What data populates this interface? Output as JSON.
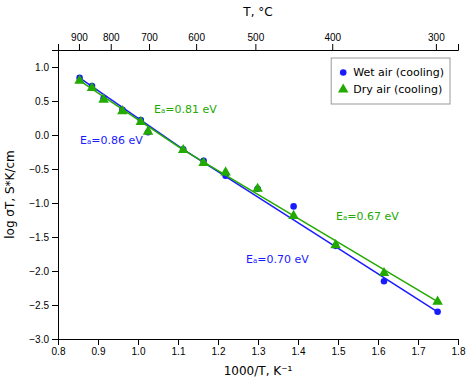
{
  "chart_data": {
    "type": "scatter",
    "xlabel": "1000/T, K⁻¹",
    "ylabel": "log σT, S*K/cm",
    "x2label": "T, °C",
    "xlim": [
      0.8,
      1.8
    ],
    "ylim": [
      -3.0,
      1.25
    ],
    "x2lim": [
      0.8,
      1.8
    ],
    "xticks": [
      0.8,
      0.9,
      {
        "value": 1.0,
        "label": "1.0"
      },
      1.1,
      1.2,
      1.3,
      1.4,
      1.5,
      1.6,
      1.7,
      1.8
    ],
    "yticks": [
      {
        "value": -3.0,
        "label": "−3.0"
      },
      {
        "value": -2.5,
        "label": "−2.5"
      },
      {
        "value": -2.0,
        "label": "−2.0"
      },
      {
        "value": -1.5,
        "label": "−1.5"
      },
      {
        "value": -1.0,
        "label": "−1.0"
      },
      {
        "value": -0.5,
        "label": "−0.5"
      },
      {
        "value": 0.0,
        "label": "0.0"
      },
      0.5,
      {
        "value": 1.0,
        "label": "1.0"
      }
    ],
    "x2ticks": [
      {
        "value": 0.852406,
        "label": "900"
      },
      {
        "value": 0.931836,
        "label": "800"
      },
      {
        "value": 1.027591,
        "label": "700"
      },
      {
        "value": 1.145279,
        "label": "600"
      },
      {
        "value": 1.29341,
        "label": "500"
      },
      {
        "value": 1.485553,
        "label": "400"
      },
      {
        "value": 1.744744,
        "label": "300"
      }
    ],
    "grid": false,
    "legend": "upper right",
    "series": [
      {
        "name": "Wet air (cooling)",
        "color": "#1a1aff",
        "marker": "circle",
        "x": [
          0.854,
          0.885,
          0.914,
          0.961,
          1.007,
          1.025,
          1.113,
          1.164,
          1.219,
          1.299,
          1.389,
          1.494,
          1.615,
          1.749
        ],
        "values": [
          0.84,
          0.72,
          0.54,
          0.37,
          0.22,
          0.04,
          -0.21,
          -0.38,
          -0.6,
          -0.79,
          -1.05,
          -1.63,
          -2.15,
          -2.6
        ],
        "segments": [
          {
            "x": [
              0.854,
              1.113
            ],
            "values": [
              0.84,
              -0.21
            ]
          },
          {
            "x": [
              1.113,
              1.749
            ],
            "values": [
              -0.21,
              -2.6
            ]
          }
        ]
      },
      {
        "name": "Dry air (cooling)",
        "color": "#22aa00",
        "marker": "triangle",
        "x": [
          0.854,
          0.885,
          0.914,
          0.961,
          1.007,
          1.025,
          1.113,
          1.164,
          1.219,
          1.299,
          1.389,
          1.494,
          1.615,
          1.749
        ],
        "values": [
          0.8,
          0.69,
          0.52,
          0.35,
          0.19,
          0.05,
          -0.22,
          -0.41,
          -0.55,
          -0.79,
          -1.19,
          -1.62,
          -2.03,
          -2.45
        ],
        "segments": [
          {
            "x": [
              0.854,
              1.113
            ],
            "values": [
              0.8,
              -0.22
            ]
          },
          {
            "x": [
              1.113,
              1.749
            ],
            "values": [
              -0.22,
              -2.45
            ]
          }
        ]
      }
    ],
    "annotations": [
      {
        "text": "Eₐ=0.81 eV",
        "x": 1.04,
        "y": 0.38,
        "color": "#22aa00"
      },
      {
        "text": "Eₐ=0.86 eV",
        "x": 0.855,
        "y": -0.08,
        "color": "#1a1aff"
      },
      {
        "text": "Eₐ=0.67 eV",
        "x": 1.495,
        "y": -1.2,
        "color": "#22aa00"
      },
      {
        "text": "Eₐ=0.70 eV",
        "x": 1.27,
        "y": -1.82,
        "color": "#1a1aff"
      }
    ]
  }
}
